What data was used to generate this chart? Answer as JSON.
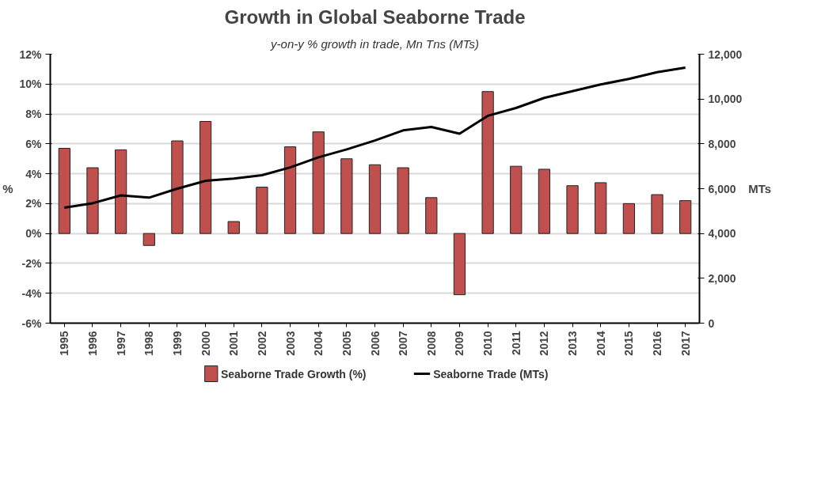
{
  "chart_data": {
    "type": "bar",
    "title": "Growth in Global Seaborne Trade",
    "subtitle": "y-on-y % growth in trade, Mn Tns (MTs)",
    "ylabel": "%",
    "y2label": "MTs",
    "categories": [
      "1995",
      "1996",
      "1997",
      "1998",
      "1999",
      "2000",
      "2001",
      "2002",
      "2003",
      "2004",
      "2005",
      "2006",
      "2007",
      "2008",
      "2009",
      "2010",
      "2011",
      "2012",
      "2013",
      "2014",
      "2015",
      "2016",
      "2017"
    ],
    "series": [
      {
        "name": "Seaborne Trade Growth (%)",
        "color": "#c0504d",
        "values": [
          5.7,
          4.4,
          5.6,
          -0.8,
          6.2,
          7.5,
          0.8,
          3.1,
          5.8,
          6.8,
          5.0,
          4.6,
          4.4,
          2.4,
          -4.1,
          9.5,
          4.5,
          4.3,
          3.2,
          3.4,
          2.0,
          2.6,
          2.2
        ]
      },
      {
        "name": "Seaborne Trade (MTs)",
        "type": "line",
        "axis": "y2",
        "color": "#000000",
        "values": [
          5150,
          5350,
          5700,
          5600,
          6000,
          6350,
          6450,
          6600,
          6950,
          7400,
          7750,
          8150,
          8600,
          8750,
          8450,
          9250,
          9600,
          10050,
          10350,
          10650,
          10900,
          11200,
          11400
        ]
      }
    ],
    "ylim": [
      -6,
      12
    ],
    "yticks": [
      {
        "value": -6,
        "label": "-6%"
      },
      {
        "value": -4,
        "label": "-4%"
      },
      {
        "value": -2,
        "label": "-2%"
      },
      {
        "value": 0,
        "label": "0%"
      },
      {
        "value": 2,
        "label": "2%"
      },
      {
        "value": 4,
        "label": "4%"
      },
      {
        "value": 6,
        "label": "6%"
      },
      {
        "value": 8,
        "label": "8%"
      },
      {
        "value": 10,
        "label": "10%"
      },
      {
        "value": 12,
        "label": "12%"
      }
    ],
    "y2lim": [
      0,
      12000
    ],
    "y2ticks": [
      {
        "value": 0,
        "label": "0"
      },
      {
        "value": 2000,
        "label": "2,000"
      },
      {
        "value": 4000,
        "label": "4,000"
      },
      {
        "value": 6000,
        "label": "6,000"
      },
      {
        "value": 8000,
        "label": "8,000"
      },
      {
        "value": 10000,
        "label": "10,000"
      },
      {
        "value": 12000,
        "label": "12,000"
      }
    ],
    "grid": "y",
    "legend": "bottom"
  }
}
